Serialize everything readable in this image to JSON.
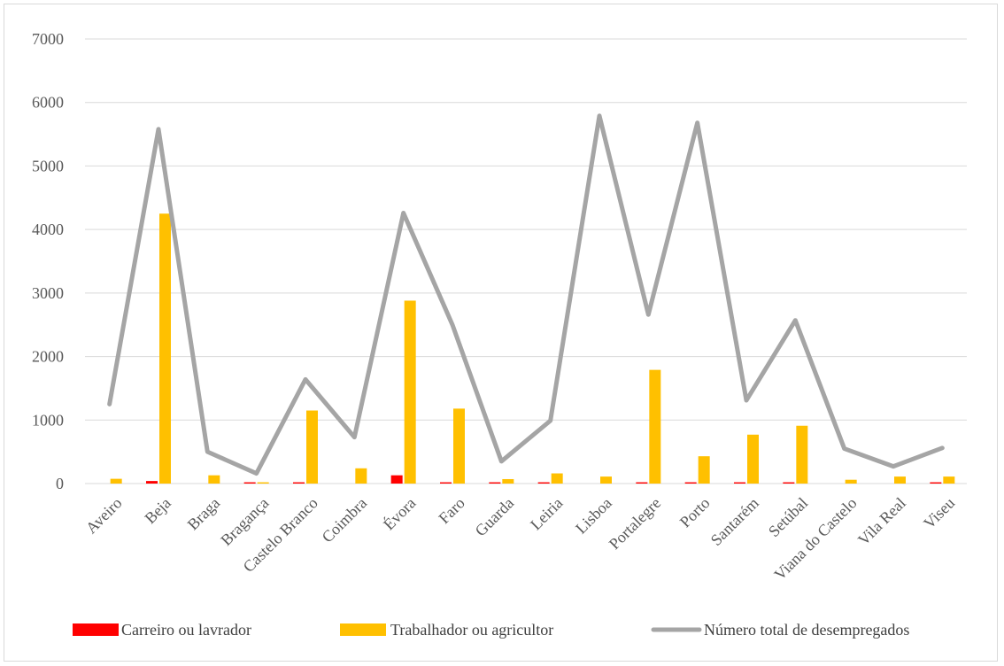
{
  "chart_data": {
    "type": "bar",
    "categories": [
      "Aveiro",
      "Beja",
      "Braga",
      "Bragança",
      "Castelo Branco",
      "Coimbra",
      "Évora",
      "Faro",
      "Guarda",
      "Leiria",
      "Lisboa",
      "Portalegre",
      "Porto",
      "Santarém",
      "Setúbal",
      "Viana do Castelo",
      "Vila Real",
      "Viseu"
    ],
    "series": [
      {
        "name": "Carreiro ou lavrador",
        "kind": "bar",
        "color": "#ff0000",
        "values": [
          0,
          40,
          0,
          20,
          20,
          0,
          130,
          20,
          20,
          20,
          0,
          20,
          20,
          20,
          20,
          0,
          0,
          20
        ]
      },
      {
        "name": "Trabalhador ou agricultor",
        "kind": "bar",
        "color": "#ffc000",
        "values": [
          75,
          4250,
          130,
          20,
          1150,
          240,
          2880,
          1180,
          70,
          160,
          110,
          1790,
          430,
          770,
          910,
          60,
          110,
          110
        ]
      },
      {
        "name": "Número total de desempregados",
        "kind": "line",
        "color": "#a5a5a5",
        "values": [
          1250,
          5580,
          500,
          160,
          1640,
          730,
          4260,
          2500,
          350,
          990,
          5790,
          2660,
          5680,
          1310,
          2570,
          550,
          270,
          560
        ]
      }
    ],
    "yaxis": {
      "min": 0,
      "max": 7000,
      "ticks": [
        "0",
        "1000",
        "2000",
        "3000",
        "4000",
        "5000",
        "6000",
        "7000"
      ]
    },
    "grid": true,
    "legend_position": "bottom"
  }
}
